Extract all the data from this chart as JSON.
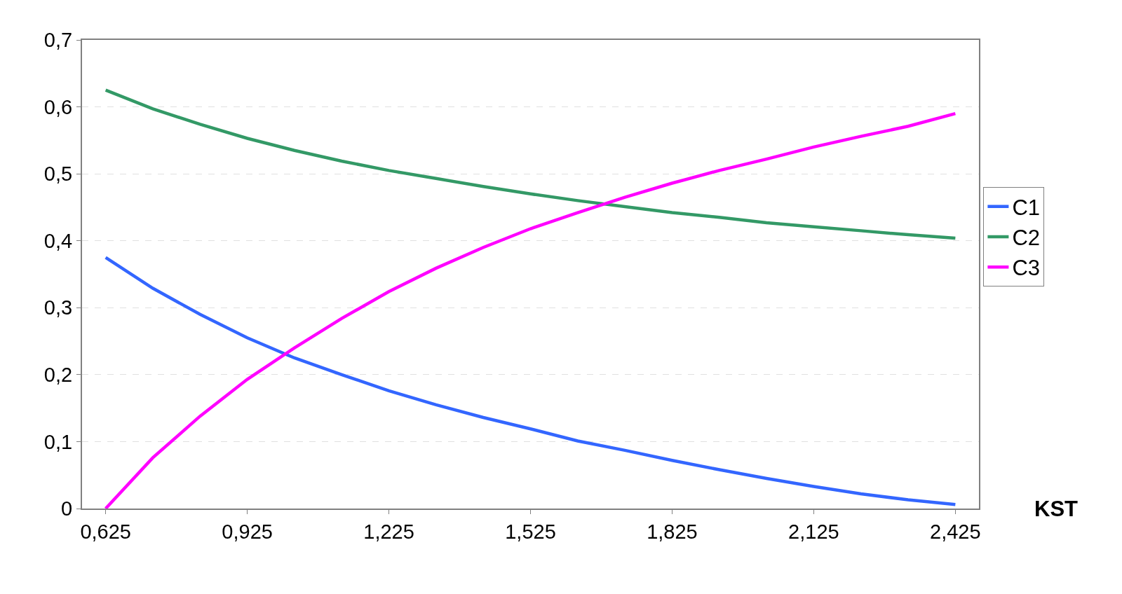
{
  "chart_data": {
    "type": "line",
    "xlabel": "KST",
    "x": [
      0.625,
      0.725,
      0.825,
      0.925,
      1.025,
      1.125,
      1.225,
      1.325,
      1.425,
      1.525,
      1.625,
      1.725,
      1.825,
      1.925,
      2.025,
      2.125,
      2.225,
      2.325,
      2.425
    ],
    "series": [
      {
        "name": "C1",
        "color": "#3366ff",
        "values": [
          0.375,
          0.329,
          0.29,
          0.255,
          0.225,
          0.2,
          0.176,
          0.155,
          0.136,
          0.119,
          0.101,
          0.087,
          0.072,
          0.058,
          0.045,
          0.033,
          0.022,
          0.013,
          0.006
        ]
      },
      {
        "name": "C2",
        "color": "#339966",
        "values": [
          0.625,
          0.597,
          0.574,
          0.553,
          0.535,
          0.519,
          0.505,
          0.493,
          0.481,
          0.47,
          0.46,
          0.451,
          0.442,
          0.435,
          0.427,
          0.421,
          0.415,
          0.409,
          0.404
        ]
      },
      {
        "name": "C3",
        "color": "#ff00ff",
        "values": [
          0.0,
          0.076,
          0.138,
          0.193,
          0.24,
          0.284,
          0.324,
          0.359,
          0.39,
          0.418,
          0.442,
          0.465,
          0.486,
          0.505,
          0.522,
          0.54,
          0.556,
          0.571,
          0.59
        ]
      }
    ],
    "xlim": [
      0.575,
      2.475
    ],
    "xticks": [
      {
        "value": 0.625,
        "label": "0,625"
      },
      {
        "value": 0.925,
        "label": "0,925"
      },
      {
        "value": 1.225,
        "label": "1,225"
      },
      {
        "value": 1.525,
        "label": "1,525"
      },
      {
        "value": 1.825,
        "label": "1,825"
      },
      {
        "value": 2.125,
        "label": "2,125"
      },
      {
        "value": 2.425,
        "label": "2,425"
      }
    ],
    "ylim": [
      0,
      0.7
    ],
    "yticks": [
      {
        "value": 0,
        "label": "0"
      },
      {
        "value": 0.1,
        "label": "0,1"
      },
      {
        "value": 0.2,
        "label": "0,2"
      },
      {
        "value": 0.3,
        "label": "0,3"
      },
      {
        "value": 0.4,
        "label": "0,4"
      },
      {
        "value": 0.5,
        "label": "0,5"
      },
      {
        "value": 0.6,
        "label": "0,6"
      },
      {
        "value": 0.7,
        "label": "0,7"
      }
    ],
    "grid": "y",
    "legend": "right",
    "marker": "none",
    "line_style": "solid"
  }
}
